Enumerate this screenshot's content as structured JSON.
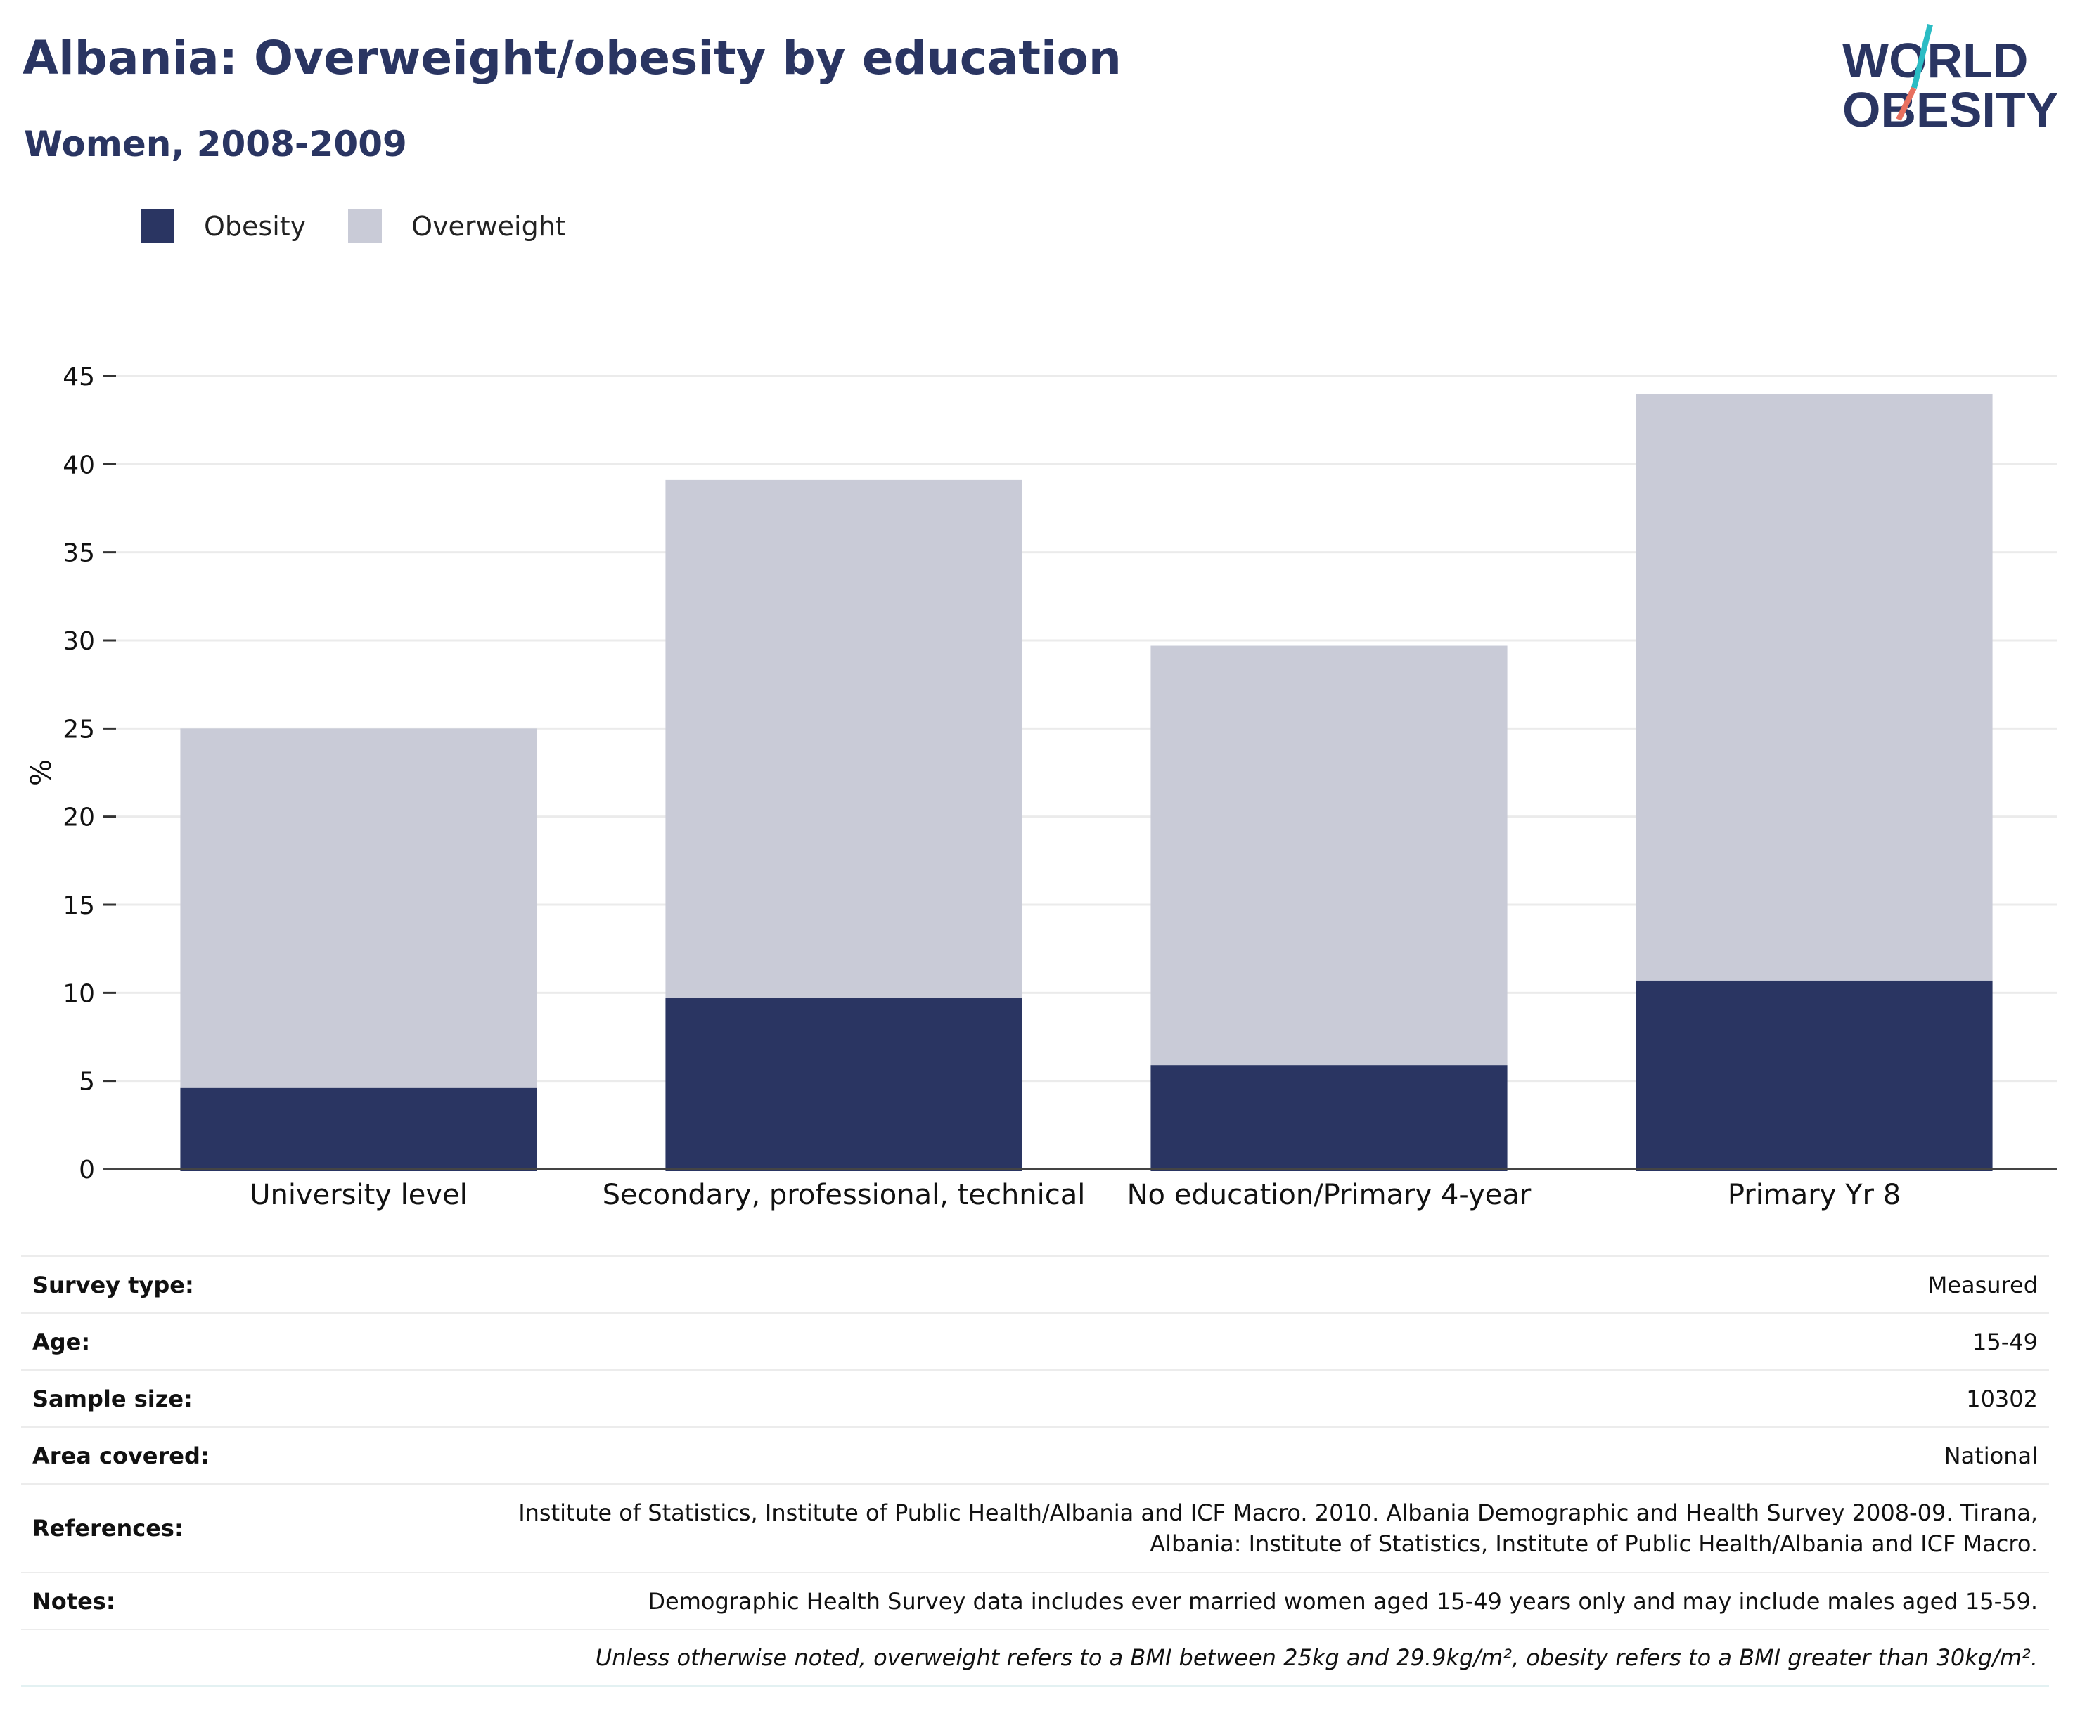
{
  "header": {
    "title": "Albania: Overweight/obesity by education",
    "subtitle": "Women, 2008-2009"
  },
  "logo": {
    "line1": "WORLD",
    "line2": "OBESITY"
  },
  "legend": [
    {
      "label": "Obesity",
      "color": "#2a3562"
    },
    {
      "label": "Overweight",
      "color": "#c9cbd7"
    }
  ],
  "chart_data": {
    "type": "bar",
    "stacked": true,
    "categories": [
      "University level",
      "Secondary, professional, technical",
      "No education/Primary 4-year",
      "Primary Yr 8"
    ],
    "series": [
      {
        "name": "Obesity",
        "color": "#2a3562",
        "values": [
          4.6,
          9.7,
          5.9,
          10.7
        ]
      },
      {
        "name": "Overweight",
        "color": "#c9cbd7",
        "values": [
          20.4,
          29.4,
          23.8,
          33.3
        ]
      }
    ],
    "ylabel": "%",
    "ylim": [
      0,
      45
    ],
    "yticks": [
      0,
      5,
      10,
      15,
      20,
      25,
      30,
      35,
      40,
      45
    ],
    "grid": true,
    "legend_position": "top-left"
  },
  "meta": [
    {
      "key": "Survey type:",
      "value": "Measured"
    },
    {
      "key": "Age:",
      "value": "15-49"
    },
    {
      "key": "Sample size:",
      "value": "10302"
    },
    {
      "key": "Area covered:",
      "value": "National"
    },
    {
      "key": "References:",
      "value": "Institute of Statistics, Institute of Public Health/Albania and ICF Macro. 2010. Albania Demographic and Health Survey 2008-09. Tirana, Albania: Institute of Statistics, Institute of Public Health/Albania and ICF Macro."
    },
    {
      "key": "Notes:",
      "value": "Demographic Health Survey data includes ever married women aged 15-49 years only and may include males aged 15-59."
    }
  ],
  "footnote": "Unless otherwise noted, overweight refers to a BMI between 25kg and 29.9kg/m², obesity refers to a BMI greater than 30kg/m²."
}
